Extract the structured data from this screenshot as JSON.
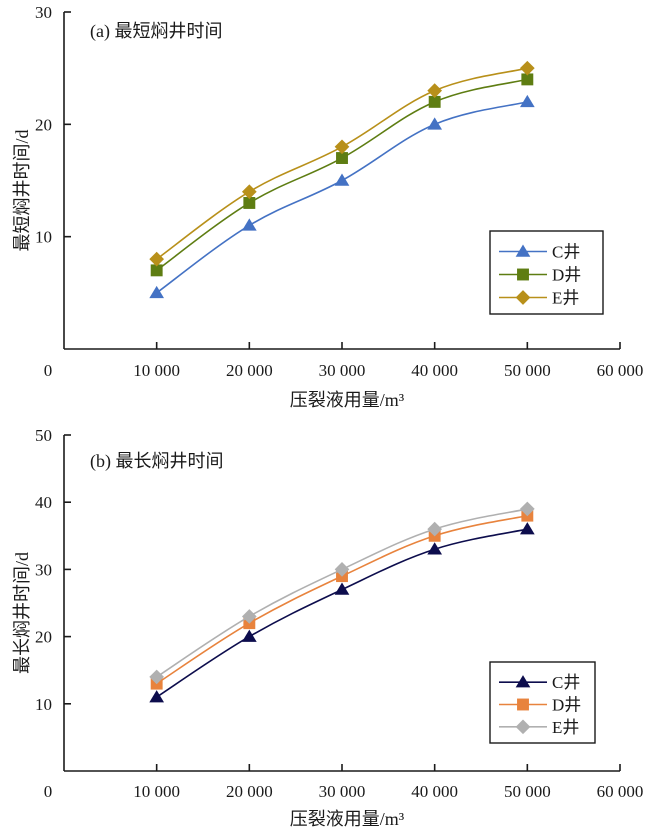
{
  "chart_data": [
    {
      "type": "line",
      "title": "(a) 最短焖井时间",
      "xlabel": "压裂液用量/m³",
      "ylabel": "最短焖井时间/d",
      "xlim": [
        0,
        60000
      ],
      "ylim": [
        0,
        30
      ],
      "x_ticks": [
        0,
        10000,
        20000,
        30000,
        40000,
        50000,
        60000
      ],
      "x_tick_labels": [
        "0",
        "10 000",
        "20 000",
        "30 000",
        "40 000",
        "50 000",
        "60 000"
      ],
      "y_ticks": [
        10,
        20,
        30
      ],
      "y_tick_labels": [
        "10",
        "20",
        "30"
      ],
      "grid": false,
      "legend_position": "bottom-right",
      "x": [
        10000,
        20000,
        30000,
        40000,
        50000
      ],
      "series": [
        {
          "name": "C井",
          "marker": "triangle",
          "color": "#4472C4",
          "values": [
            5,
            11,
            15,
            20,
            22
          ]
        },
        {
          "name": "D井",
          "marker": "square",
          "color": "#5E7D12",
          "values": [
            7,
            13,
            17,
            22,
            24
          ]
        },
        {
          "name": "E井",
          "marker": "diamond",
          "color": "#B8901A",
          "values": [
            8,
            14,
            18,
            23,
            25
          ]
        }
      ]
    },
    {
      "type": "line",
      "title": "(b) 最长焖井时间",
      "xlabel": "压裂液用量/m³",
      "ylabel": "最长焖井时间/d",
      "xlim": [
        0,
        60000
      ],
      "ylim": [
        0,
        50
      ],
      "x_ticks": [
        0,
        10000,
        20000,
        30000,
        40000,
        50000,
        60000
      ],
      "x_tick_labels": [
        "0",
        "10 000",
        "20 000",
        "30 000",
        "40 000",
        "50 000",
        "60 000"
      ],
      "y_ticks": [
        10,
        20,
        30,
        40,
        50
      ],
      "y_tick_labels": [
        "10",
        "20",
        "30",
        "40",
        "50"
      ],
      "grid": false,
      "legend_position": "bottom-right",
      "x": [
        10000,
        20000,
        30000,
        40000,
        50000
      ],
      "series": [
        {
          "name": "C井",
          "marker": "triangle",
          "color": "#0D0D4D",
          "values": [
            11,
            20,
            27,
            33,
            36
          ]
        },
        {
          "name": "D井",
          "marker": "square",
          "color": "#E8833D",
          "values": [
            13,
            22,
            29,
            35,
            38
          ]
        },
        {
          "name": "E井",
          "marker": "diamond",
          "color": "#B0B0B0",
          "values": [
            14,
            23,
            30,
            36,
            39
          ]
        }
      ]
    }
  ]
}
